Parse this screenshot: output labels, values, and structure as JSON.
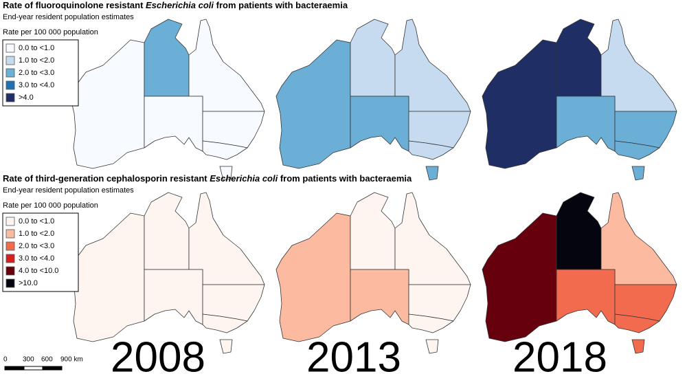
{
  "panels": [
    {
      "title": [
        "Rate of fluoroquinolone resistant ",
        "Escherichia coli",
        " from patients with bacteraemia"
      ],
      "subtitle": "End-year resident population estimates",
      "legend_title": "Rate per 100 000 population",
      "legend": [
        {
          "label": "0.0 to <1.0",
          "color": "#f7fbff"
        },
        {
          "label": "1.0 to <2.0",
          "color": "#c6dbef"
        },
        {
          "label": "2.0 to <3.0",
          "color": "#6baed6"
        },
        {
          "label": "3.0 to <4.0",
          "color": "#2171b5"
        },
        {
          "label": ">4.0",
          "color": "#1f2f66"
        }
      ],
      "maps": [
        {
          "region_classes": [
            0,
            2,
            0,
            0,
            0,
            0,
            0
          ]
        },
        {
          "region_classes": [
            2,
            1,
            1,
            2,
            1,
            1,
            2
          ]
        },
        {
          "region_classes": [
            4,
            4,
            1,
            2,
            2,
            2,
            2
          ]
        }
      ]
    },
    {
      "title": [
        "Rate of third-generation cephalosporin resistant ",
        "Escherichia coli",
        " from patients with bacteraemia"
      ],
      "subtitle": "End-year resident population estimates",
      "legend_title": "Rate per 100 000 population",
      "legend": [
        {
          "label": "0.0 to <1.0",
          "color": "#fff5f0"
        },
        {
          "label": "1.0 to <2.0",
          "color": "#fcbba1"
        },
        {
          "label": "2.0 to <3.0",
          "color": "#f26b4f"
        },
        {
          "label": "3.0 to <4.0",
          "color": "#d62020"
        },
        {
          "label": "4.0 to <10.0",
          "color": "#67000d"
        },
        {
          "label": ">10.0",
          "color": "#050510"
        }
      ],
      "maps": [
        {
          "region_classes": [
            0,
            0,
            0,
            0,
            0,
            0,
            0
          ]
        },
        {
          "region_classes": [
            1,
            0,
            0,
            1,
            0,
            0,
            0
          ]
        },
        {
          "region_classes": [
            4,
            5,
            1,
            2,
            2,
            2,
            2
          ]
        }
      ]
    }
  ],
  "years": [
    "2008",
    "2013",
    "2018"
  ],
  "scale_bar": [
    "0",
    "300",
    "600",
    "900 km"
  ]
}
